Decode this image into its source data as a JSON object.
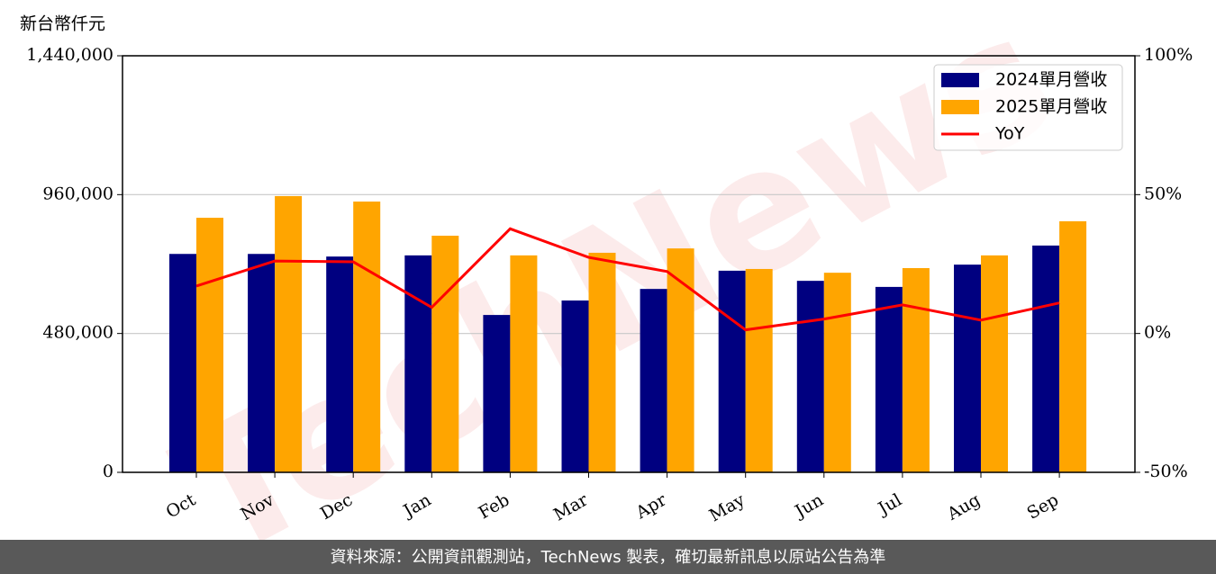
{
  "chart_data": {
    "type": "bar",
    "y_label": "新台幣仟元",
    "categories": [
      "Oct",
      "Nov",
      "Dec",
      "Jan",
      "Feb",
      "Mar",
      "Apr",
      "May",
      "Jun",
      "Jul",
      "Aug",
      "Sep"
    ],
    "series": [
      {
        "name": "2024單月營收",
        "color": "#000080",
        "values": [
          755000,
          755000,
          746000,
          750000,
          544000,
          594000,
          634000,
          697000,
          662000,
          641000,
          718000,
          784000
        ]
      },
      {
        "name": "2025單月營收",
        "color": "#ffa500",
        "values": [
          880000,
          955000,
          936000,
          818000,
          750000,
          759000,
          774000,
          703000,
          690000,
          706000,
          750000,
          868000
        ]
      },
      {
        "name": "YoY",
        "color": "#ff0000",
        "type": "line",
        "axis": "y2",
        "values": [
          17.1,
          26.1,
          25.8,
          9.4,
          37.7,
          27.4,
          22.3,
          1.3,
          5.2,
          10.3,
          4.8,
          11.0
        ]
      }
    ],
    "ylim": [
      0,
      1440000
    ],
    "yticks": [
      0,
      {
        "value": 480000,
        "label": "480,000"
      },
      {
        "value": 960000,
        "label": "960,000"
      },
      {
        "value": 1440000,
        "label": "1,440,000"
      }
    ],
    "y2lim": [
      -50,
      100
    ],
    "y2ticks": [
      {
        "value": -50,
        "label": "-50%"
      },
      {
        "value": 0,
        "label": "0%"
      },
      {
        "value": 50,
        "label": "50%"
      },
      {
        "value": 100,
        "label": "100%"
      }
    ],
    "grid": true,
    "legend": "upper right",
    "watermark": "TechNews",
    "footer": "資料來源：公開資訊觀測站，TechNews 製表，確切最新訊息以原站公告為準"
  }
}
